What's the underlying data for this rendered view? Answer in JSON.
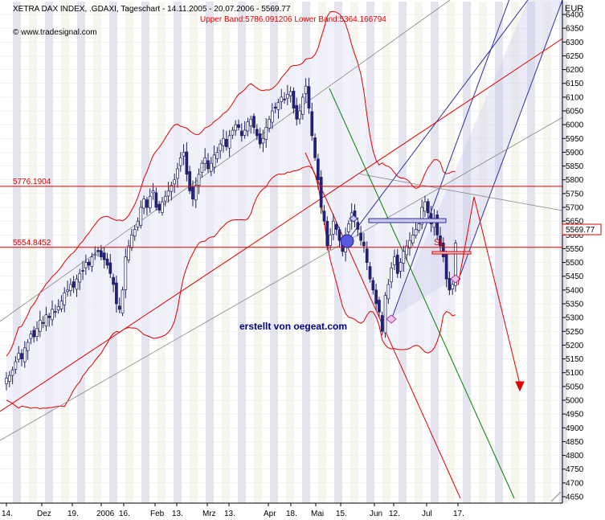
{
  "header": {
    "title": "XETRA DAX INDEX, .GDAXI, Tageschart - 14.11.2005 - 20.07.2006 - 5569.77",
    "bands": "Upper Band:5786.091206 Lower Band:5364.166794",
    "source": "© www.tradesignal.com"
  },
  "watermark": "erstellt von oegeat.com",
  "currency": "EUR",
  "price_label": "5569.77",
  "sl_label": "SL",
  "levels": [
    {
      "value": 5776.1904,
      "label": "5776.1904"
    },
    {
      "value": 5554.8452,
      "label": "5554.8452"
    }
  ],
  "colors": {
    "band": "#e00000",
    "up": "#ffffff",
    "down": "#202080",
    "channel": "#3030a0",
    "green_line": "#008000",
    "grid_stripe": "#e4e4ee",
    "watermark": "#000080"
  },
  "chart_data": {
    "type": "candlestick",
    "title": "XETRA DAX INDEX, .GDAXI, Tageschart - 14.11.2005 - 20.07.2006 - 5569.77",
    "ylabel": "EUR",
    "ylim": [
      4650,
      6450
    ],
    "yticks": [
      4650,
      4700,
      4750,
      4800,
      4850,
      4900,
      4950,
      5000,
      5050,
      5100,
      5150,
      5200,
      5250,
      5300,
      5350,
      5400,
      5450,
      5500,
      5550,
      5600,
      5650,
      5700,
      5750,
      5800,
      5850,
      5900,
      5950,
      6000,
      6050,
      6100,
      6150,
      6200,
      6250,
      6300,
      6350,
      6400
    ],
    "xticks": [
      "14.",
      "Dez",
      "19.",
      "2006",
      "16.",
      "Feb",
      "13.",
      "Mrz",
      "13.",
      "Apr",
      "18.",
      "Mai",
      "15.",
      "Jun",
      "12.",
      "Jul",
      "17."
    ],
    "last": 5569.77,
    "upper_band_last": 5786.091206,
    "lower_band_last": 5364.166794,
    "closes": [
      5080,
      5090,
      5110,
      5140,
      5170,
      5150,
      5190,
      5210,
      5240,
      5230,
      5260,
      5290,
      5280,
      5310,
      5300,
      5330,
      5320,
      5340,
      5360,
      5390,
      5400,
      5420,
      5410,
      5440,
      5460,
      5470,
      5500,
      5490,
      5520,
      5530,
      5540,
      5520,
      5510,
      5490,
      5460,
      5420,
      5350,
      5330,
      5400,
      5520,
      5560,
      5600,
      5620,
      5650,
      5700,
      5730,
      5700,
      5740,
      5760,
      5700,
      5690,
      5720,
      5740,
      5760,
      5780,
      5800,
      5840,
      5880,
      5900,
      5820,
      5760,
      5730,
      5780,
      5820,
      5860,
      5880,
      5840,
      5860,
      5890,
      5900,
      5930,
      5950,
      5920,
      5960,
      5980,
      6000,
      5990,
      5960,
      5980,
      6010,
      6020,
      5990,
      5960,
      5930,
      5950,
      5990,
      6020,
      6050,
      6060,
      6080,
      6100,
      6090,
      6110,
      6120,
      6060,
      6020,
      6050,
      6100,
      6140,
      6060,
      5960,
      5880,
      5800,
      5700,
      5650,
      5560,
      5600,
      5650,
      5620,
      5580,
      5540,
      5600,
      5640,
      5680,
      5660,
      5620,
      5580,
      5560,
      5500,
      5440,
      5400,
      5350,
      5320,
      5250,
      5380,
      5420,
      5480,
      5520,
      5460,
      5500,
      5540,
      5560,
      5580,
      5600,
      5620,
      5640,
      5700,
      5720,
      5680,
      5640,
      5660,
      5600,
      5560,
      5520,
      5440,
      5400,
      5420,
      5569.77
    ],
    "projection": [
      {
        "date": "20.07.2006",
        "value": 5569.77
      },
      {
        "date": "24.07.2006",
        "value": 5700
      },
      {
        "date": "14.08.2006",
        "value": 5000
      }
    ]
  }
}
